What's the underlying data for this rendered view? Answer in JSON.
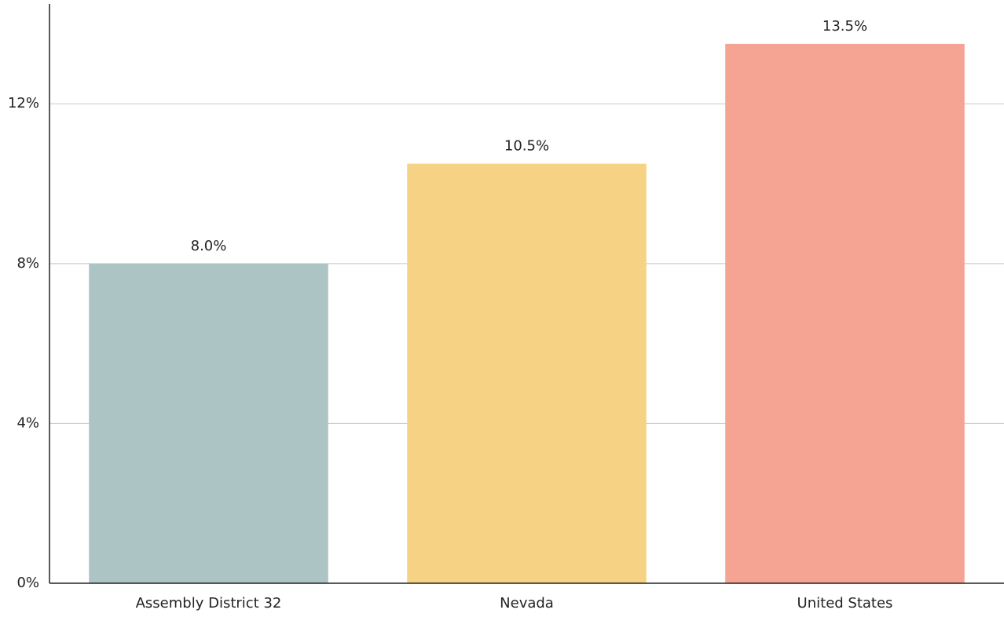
{
  "chart_data": {
    "type": "bar",
    "categories": [
      "Assembly District 32",
      "Nevada",
      "United States"
    ],
    "values": [
      8.0,
      10.5,
      13.5
    ],
    "value_labels": [
      "8.0%",
      "10.5%",
      "13.5%"
    ],
    "colors": [
      "#adc4c5",
      "#f6d285",
      "#f5a493"
    ],
    "ylim": [
      0,
      14.5
    ],
    "yticks": [
      {
        "value": 0,
        "label": "0%"
      },
      {
        "value": 4,
        "label": "4%"
      },
      {
        "value": 8,
        "label": "8%"
      },
      {
        "value": 12,
        "label": "12%"
      }
    ],
    "grid": true
  }
}
